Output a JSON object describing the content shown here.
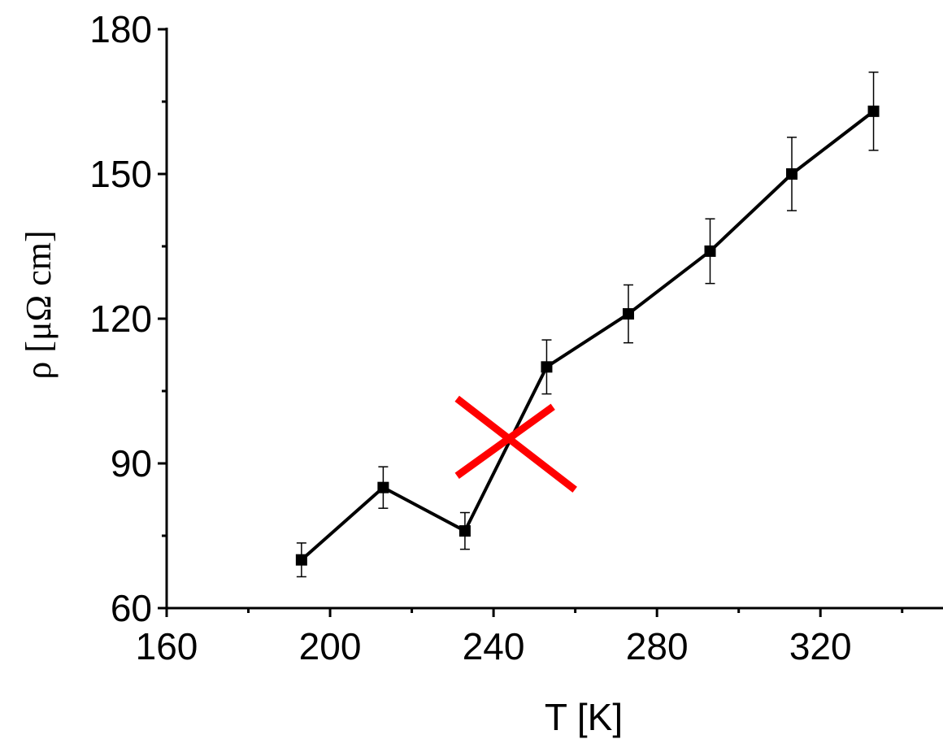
{
  "chart_data": {
    "type": "line",
    "title": "",
    "xlabel": "T [K]",
    "ylabel": "ρ [μΩ cm]",
    "xlim": [
      160,
      350
    ],
    "ylim": [
      60,
      180
    ],
    "x_ticks": [
      160,
      200,
      240,
      280,
      320
    ],
    "x_minor_ticks": [
      180,
      220,
      260,
      300,
      340
    ],
    "y_ticks": [
      60,
      90,
      120,
      150,
      180
    ],
    "y_minor_ticks": [
      75,
      105,
      135,
      165
    ],
    "grid": false,
    "series": [
      {
        "marker": "square",
        "color": "#000000",
        "x": [
          193,
          213,
          233,
          253,
          273,
          293,
          313,
          333
        ],
        "y": [
          70,
          85,
          76,
          110,
          121,
          134,
          150,
          163
        ],
        "yerr": [
          3.5,
          4.3,
          3.8,
          5.6,
          6.0,
          6.7,
          7.6,
          8.1
        ]
      }
    ],
    "annotations": [
      {
        "type": "cross-mark",
        "color": "#ff0000",
        "x": 243,
        "y": 95
      }
    ]
  }
}
